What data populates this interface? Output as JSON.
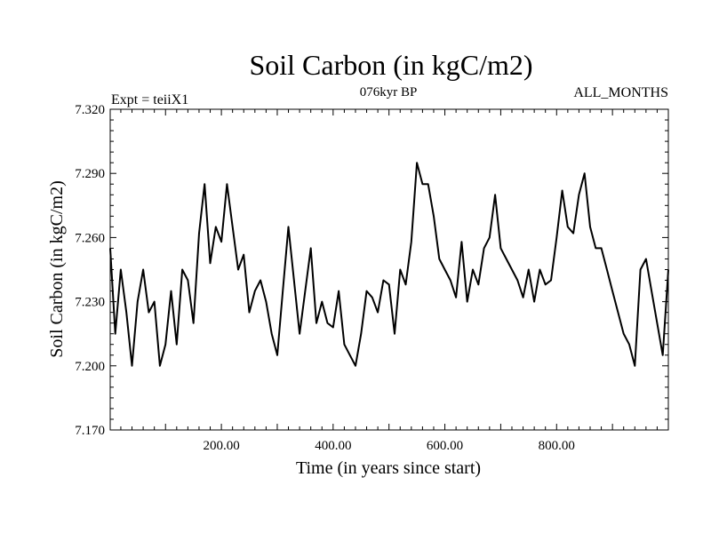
{
  "chart_data": {
    "type": "line",
    "title": "Soil Carbon (in kgC/m2)",
    "subtitle": "076kyr BP",
    "left_label": "Expt = teiiX1",
    "right_label": "ALL_MONTHS",
    "xlabel": "Time (in years since start)",
    "ylabel": "Soil Carbon (in kgC/m2)",
    "xlim": [
      1,
      1000
    ],
    "ylim": [
      7.17,
      7.32
    ],
    "xticks": [
      200,
      400,
      600,
      800
    ],
    "xtick_labels": [
      "200.00",
      "400.00",
      "600.00",
      "800.00"
    ],
    "yticks": [
      7.17,
      7.2,
      7.23,
      7.26,
      7.29,
      7.32
    ],
    "ytick_labels": [
      "7.170",
      "7.200",
      "7.230",
      "7.260",
      "7.290",
      "7.320"
    ],
    "line_color": "#000000",
    "grid": false,
    "series": [
      {
        "x": [
          1,
          10,
          20,
          30,
          40,
          50,
          60,
          70,
          80,
          90,
          100,
          110,
          120,
          130,
          140,
          150,
          160,
          170,
          180,
          190,
          200,
          210,
          220,
          230,
          240,
          250,
          260,
          270,
          280,
          290,
          300,
          310,
          320,
          330,
          340,
          350,
          360,
          370,
          380,
          390,
          400,
          410,
          420,
          430,
          440,
          450,
          460,
          470,
          480,
          490,
          500,
          510,
          520,
          530,
          540,
          550,
          560,
          570,
          580,
          590,
          600,
          610,
          620,
          630,
          640,
          650,
          660,
          670,
          680,
          690,
          700,
          710,
          720,
          730,
          740,
          750,
          760,
          770,
          780,
          790,
          800,
          810,
          820,
          830,
          840,
          850,
          860,
          870,
          880,
          890,
          900,
          910,
          920,
          930,
          940,
          950,
          960,
          970,
          980,
          990,
          1000
        ],
        "values": [
          7.255,
          7.215,
          7.245,
          7.225,
          7.2,
          7.23,
          7.245,
          7.225,
          7.23,
          7.2,
          7.21,
          7.235,
          7.21,
          7.245,
          7.24,
          7.22,
          7.262,
          7.285,
          7.248,
          7.265,
          7.258,
          7.285,
          7.265,
          7.245,
          7.252,
          7.225,
          7.235,
          7.24,
          7.23,
          7.215,
          7.205,
          7.235,
          7.265,
          7.24,
          7.215,
          7.235,
          7.255,
          7.22,
          7.23,
          7.22,
          7.218,
          7.235,
          7.21,
          7.205,
          7.2,
          7.215,
          7.235,
          7.232,
          7.225,
          7.24,
          7.238,
          7.215,
          7.245,
          7.238,
          7.258,
          7.295,
          7.285,
          7.285,
          7.27,
          7.25,
          7.245,
          7.24,
          7.232,
          7.258,
          7.23,
          7.245,
          7.238,
          7.255,
          7.26,
          7.28,
          7.255,
          7.25,
          7.245,
          7.24,
          7.232,
          7.245,
          7.23,
          7.245,
          7.238,
          7.24,
          7.26,
          7.282,
          7.265,
          7.262,
          7.28,
          7.29,
          7.265,
          7.255,
          7.255,
          7.245,
          7.235,
          7.225,
          7.215,
          7.21,
          7.2,
          7.245,
          7.25,
          7.235,
          7.22,
          7.205,
          7.245
        ]
      }
    ]
  }
}
